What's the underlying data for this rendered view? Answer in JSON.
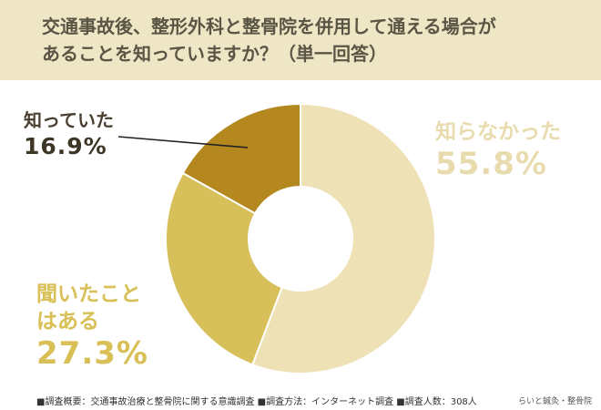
{
  "header": {
    "title_line1": "交通事故後、整形外科と整骨院を併用して通える場合が",
    "title_line2": "あることを知っていますか？（単一回答）"
  },
  "labels": {
    "known_name": "知っていた",
    "known_value": "16.9%",
    "dontknow_name": "知らなかった",
    "dontknow_value": "55.8%",
    "heard_name_line1": "聞いたこと",
    "heard_name_line2": "はある",
    "heard_value": "27.3%"
  },
  "footer": {
    "text": "■調査概要：交通事故治療と整骨院に関する意識調査 ■調査方法：インターネット調査 ■調査人数：308人",
    "brand": "らいと鍼灸・整骨院"
  },
  "colors": {
    "dontknow": "#efe1b6",
    "heard": "#d7bf5a",
    "known": "#b4871f",
    "header_bg": "#efe6c6"
  },
  "chart_data": {
    "type": "pie",
    "donut": true,
    "title": "交通事故後、整形外科と整骨院を併用して通える場合があることを知っていますか？（単一回答）",
    "start_angle_deg": 0,
    "direction": "clockwise",
    "categories": [
      "知らなかった",
      "聞いたことはある",
      "知っていた"
    ],
    "values": [
      55.8,
      27.3,
      16.9
    ],
    "unit": "%",
    "colors": [
      "#efe1b6",
      "#d7bf5a",
      "#b4871f"
    ]
  }
}
